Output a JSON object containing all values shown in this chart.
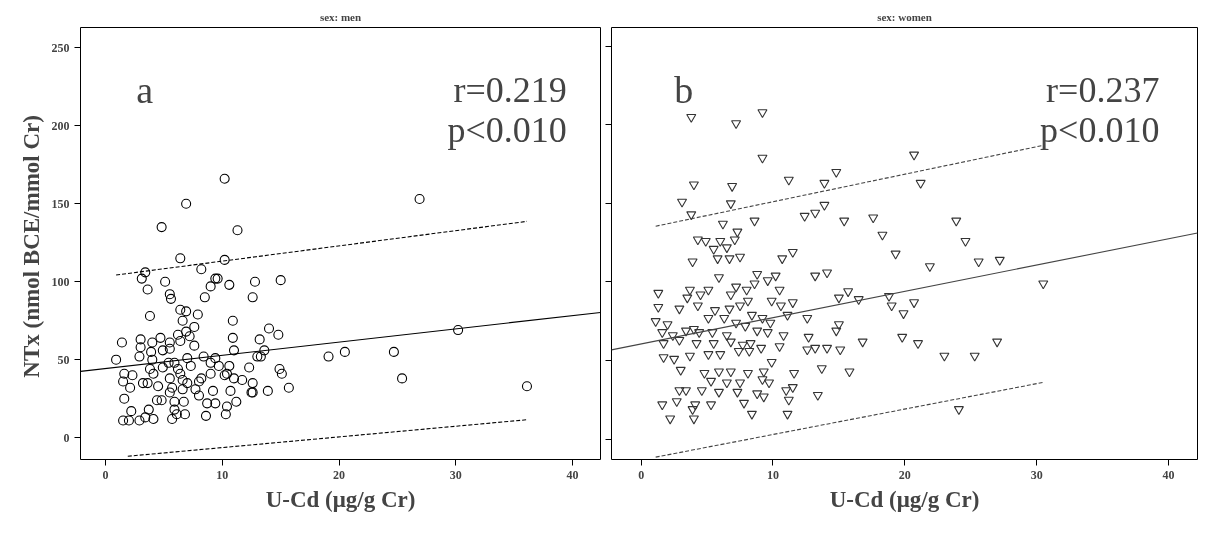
{
  "chart_data": [
    {
      "type": "scatter",
      "title": "sex: men",
      "xlabel": "U-Cd (μg/g Cr)",
      "ylabel": "NTx  (nmol BCE/mmol Cr)",
      "xlim": [
        -2.15,
        42.4
      ],
      "ylim": [
        -14,
        263
      ],
      "xticks": [
        0,
        10,
        20,
        30,
        40
      ],
      "yticks": [
        0,
        50,
        100,
        150,
        200,
        250
      ],
      "grid": false,
      "annotations": [
        "a",
        "r=0.219",
        "p<0.010"
      ],
      "series": [
        {
          "marker": "circle",
          "color": "#000000",
          "x": [
            10.2,
            6.9,
            4.8,
            11.3,
            6.4,
            10.2,
            3.4,
            3.1,
            5.1,
            8.2,
            9.4,
            9.6,
            9.0,
            10.6,
            12.8,
            15.0,
            3.6,
            5.5,
            5.6,
            8.5,
            12.6,
            6.4,
            6.9,
            7.9,
            3.8,
            6.6,
            7.6,
            10.9,
            14.0,
            14.8,
            1.4,
            3.0,
            4.0,
            4.7,
            6.2,
            6.9,
            7.2,
            5.5,
            6.4,
            3.0,
            7.6,
            10.9,
            13.2,
            3.9,
            4.9,
            5.5,
            11.0,
            13.6,
            13.0,
            13.3,
            0.9,
            2.9,
            4.0,
            7.0,
            8.4,
            9.4,
            1.6,
            2.3,
            1.5,
            2.1,
            1.6,
            3.8,
            4.1,
            4.9,
            5.4,
            5.9,
            6.2,
            6.4,
            7.3,
            9.0,
            9.7,
            10.6,
            12.3,
            14.9,
            15.1,
            15.7,
            5.5,
            6.6,
            7.0,
            8.0,
            8.2,
            9.0,
            10.2,
            10.4,
            11.0,
            11.7,
            4.5,
            5.7,
            6.6,
            7.7,
            9.2,
            10.7,
            12.6,
            12.6,
            13.9,
            3.2,
            3.6,
            4.4,
            4.8,
            5.5,
            5.9,
            6.7,
            8.0,
            8.7,
            9.4,
            10.4,
            11.2,
            12.5,
            2.2,
            3.7,
            5.9,
            6.1,
            6.8,
            8.6,
            10.3,
            1.5,
            2.0,
            2.9,
            3.4,
            4.1,
            5.7,
            19.1,
            20.5,
            24.7,
            25.4,
            30.2,
            36.1,
            26.9
          ],
          "values": [
            166,
            150,
            135,
            133,
            115,
            114,
            106,
            102,
            100,
            108,
            102,
            102,
            97,
            98,
            100,
            101,
            95,
            92,
            89,
            90,
            90,
            82,
            81,
            79,
            78,
            75,
            71,
            75,
            70,
            66,
            61,
            63,
            61,
            64,
            66,
            68,
            65,
            61,
            62,
            58,
            59,
            64,
            63,
            55,
            56,
            57,
            56,
            56,
            52,
            52,
            50,
            52,
            50,
            51,
            52,
            51,
            41,
            40,
            36,
            32,
            25,
            44,
            41,
            45,
            48,
            48,
            44,
            41,
            46,
            48,
            46,
            46,
            45,
            44,
            41,
            32,
            38,
            37,
            35,
            36,
            38,
            41,
            40,
            41,
            38,
            37,
            33,
            32,
            31,
            31,
            30,
            30,
            35,
            29,
            30,
            35,
            35,
            24,
            24,
            29,
            23,
            23,
            27,
            22,
            22,
            20,
            23,
            29,
            17,
            18,
            18,
            15,
            15,
            14,
            15,
            11,
            11,
            11,
            13,
            12,
            12,
            52,
            55,
            55,
            38,
            69,
            33,
            153
          ]
        },
        {
          "type": "line",
          "color": "#000000",
          "line_style": "solid",
          "x": [
            -2.15,
            42.4
          ],
          "values": [
            42.5,
            80.3
          ]
        },
        {
          "type": "line",
          "color": "#000000",
          "line_style": "dashed",
          "x": [
            0.9,
            36.1
          ],
          "values": [
            104.3,
            138.7
          ]
        },
        {
          "type": "line",
          "color": "#000000",
          "line_style": "dashed",
          "x": [
            1.9,
            36.1
          ],
          "values": [
            -11.9,
            11.5
          ]
        }
      ]
    },
    {
      "type": "scatter",
      "title": "sex: women",
      "xlabel": "U-Cd (μg/g Cr)",
      "xlim": [
        -2.25,
        42.2
      ],
      "ylim": [
        -13,
        262
      ],
      "xticks": [
        0,
        10,
        20,
        30,
        40
      ],
      "yticks": [
        0,
        50,
        100,
        150,
        200,
        250
      ],
      "tick_labels": "x",
      "grid": false,
      "annotations": [
        "b",
        "r=0.237",
        "p<0.010"
      ],
      "series": [
        {
          "marker": "triangle",
          "color": "#333333",
          "x": [
            9.2,
            3.8,
            7.2,
            9.2,
            4.0,
            6.9,
            11.2,
            14.8,
            13.9,
            3.1,
            6.8,
            13.9,
            3.8,
            6.2,
            8.6,
            12.4,
            13.2,
            15.4,
            17.6,
            7.3,
            4.3,
            4.9,
            7.1,
            6.0,
            5.5,
            6.5,
            5.8,
            6.7,
            7.5,
            10.7,
            11.5,
            3.9,
            5.9,
            13.2,
            14.1,
            8.8,
            9.6,
            10.2,
            1.3,
            3.7,
            5.1,
            3.5,
            4.5,
            6.8,
            7.2,
            8.0,
            10.5,
            8.6,
            15.0,
            15.7,
            16.5,
            1.3,
            2.9,
            4.3,
            5.6,
            6.7,
            7.5,
            8.1,
            9.9,
            10.6,
            11.5,
            1.1,
            2.0,
            4.0,
            5.1,
            6.3,
            7.2,
            8.4,
            9.2,
            9.8,
            11.1,
            12.6,
            15.0,
            1.6,
            2.4,
            3.4,
            4.4,
            5.4,
            6.5,
            7.9,
            8.8,
            9.6,
            1.7,
            2.9,
            4.2,
            5.5,
            6.8,
            7.7,
            8.3,
            10.8,
            12.7,
            14.8,
            16.8,
            1.7,
            2.5,
            3.7,
            5.1,
            6.0,
            7.4,
            8.2,
            9.1,
            10.5,
            12.6,
            13.2,
            14.1,
            15.1,
            3.0,
            4.8,
            5.9,
            6.8,
            8.1,
            9.3,
            9.9,
            11.6,
            13.7,
            15.8,
            5.3,
            6.5,
            7.5,
            9.2,
            9.7,
            2.9,
            3.4,
            4.6,
            5.9,
            7.3,
            8.8,
            11.0,
            11.5,
            13.4,
            1.6,
            2.7,
            4.1,
            5.3,
            11.2,
            7.8,
            9.3,
            3.9,
            4.0,
            2.2,
            8.4,
            11.1,
            18.3,
            19.3,
            20.7,
            21.2,
            23.9,
            24.6,
            21.9,
            25.6,
            27.2,
            30.5,
            18.8,
            19.0,
            19.9,
            20.7,
            19.8,
            21.0,
            23.0,
            25.3,
            27.0,
            24.1
          ],
          "values": [
            208,
            205,
            201,
            179,
            162,
            161,
            165,
            170,
            163,
            151,
            150,
            149,
            143,
            137,
            139,
            142,
            144,
            139,
            141,
            132,
            127,
            126,
            127,
            126,
            121,
            122,
            115,
            115,
            116,
            115,
            119,
            113,
            103,
            104,
            106,
            105,
            101,
            104,
            93,
            95,
            95,
            90,
            92,
            92,
            97,
            95,
            95,
            99,
            90,
            94,
            89,
            84,
            83,
            85,
            82,
            83,
            85,
            88,
            88,
            85,
            87,
            75,
            73,
            70,
            77,
            77,
            74,
            79,
            77,
            74,
            79,
            77,
            73,
            68,
            66,
            69,
            68,
            68,
            66,
            72,
            69,
            68,
            61,
            63,
            61,
            61,
            62,
            60,
            61,
            66,
            65,
            69,
            62,
            52,
            51,
            53,
            54,
            54,
            56,
            56,
            58,
            59,
            57,
            58,
            58,
            57,
            44,
            42,
            43,
            43,
            42,
            43,
            49,
            42,
            45,
            43,
            37,
            36,
            36,
            38,
            36,
            31,
            31,
            31,
            30,
            30,
            29,
            31,
            33,
            28,
            22,
            24,
            22,
            22,
            25,
            23,
            27,
            19,
            13,
            13,
            16,
            16,
            130,
            118,
            181,
            163,
            139,
            126,
            110,
            113,
            114,
            99,
            91,
            85,
            80,
            87,
            65,
            61,
            53,
            53,
            62,
            19
          ]
        },
        {
          "type": "line",
          "color": "#444444",
          "line_style": "solid",
          "x": [
            -2.25,
            42.2
          ],
          "values": [
            56.8,
            131.2
          ]
        },
        {
          "type": "line",
          "color": "#444444",
          "line_style": "dashed",
          "x": [
            1.1,
            30.5
          ],
          "values": [
            135.5,
            187.0
          ]
        },
        {
          "type": "line",
          "color": "#444444",
          "line_style": "dashed",
          "x": [
            1.1,
            30.5
          ],
          "values": [
            -11.5,
            36.1
          ]
        }
      ]
    }
  ]
}
